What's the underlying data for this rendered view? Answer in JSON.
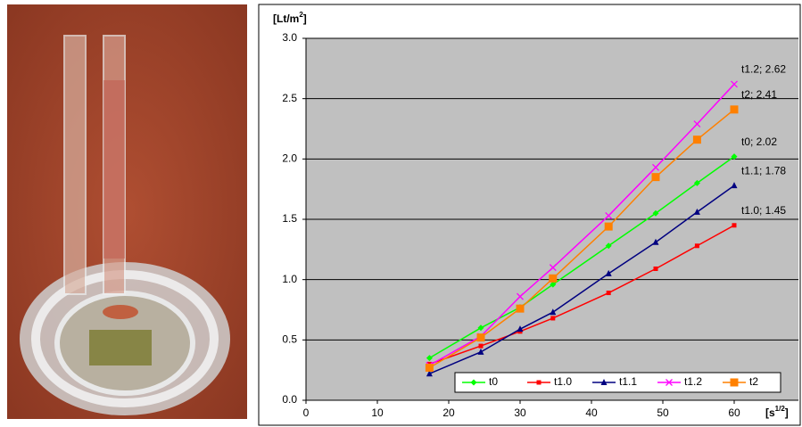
{
  "chart_data": {
    "type": "line",
    "y_label": [
      "[Lt/m",
      "2",
      "]"
    ],
    "x_label": [
      "[s",
      "1/2",
      "]"
    ],
    "x": [
      17.3,
      24.5,
      30,
      34.6,
      42.4,
      49,
      54.8,
      60
    ],
    "series": [
      {
        "name": "t0",
        "color": "#00ff00",
        "marker": "diamond",
        "values": [
          0.35,
          0.6,
          0.77,
          0.96,
          1.28,
          1.55,
          1.8,
          2.02
        ]
      },
      {
        "name": "t1.0",
        "color": "#ff0000",
        "marker": "square",
        "values": [
          0.3,
          0.45,
          0.57,
          0.68,
          0.89,
          1.09,
          1.28,
          1.45
        ]
      },
      {
        "name": "t1.1",
        "color": "#000080",
        "marker": "triangle",
        "values": [
          0.22,
          0.4,
          0.59,
          0.73,
          1.05,
          1.31,
          1.56,
          1.78
        ]
      },
      {
        "name": "t1.2",
        "color": "#ff00ff",
        "marker": "cross",
        "values": [
          0.29,
          0.53,
          0.86,
          1.1,
          1.53,
          1.93,
          2.29,
          2.62
        ]
      },
      {
        "name": "t2",
        "color": "#ff8000",
        "marker": "bigsquare",
        "values": [
          0.27,
          0.52,
          0.76,
          1.01,
          1.44,
          1.85,
          2.16,
          2.41
        ]
      }
    ],
    "annotations": [
      {
        "series": 3,
        "text": "t1.2; 2.62"
      },
      {
        "series": 4,
        "text": "t2; 2.41"
      },
      {
        "series": 0,
        "text": "t0; 2.02"
      },
      {
        "series": 2,
        "text": "t1.1; 1.78"
      },
      {
        "series": 1,
        "text": "t1.0; 1.45"
      }
    ],
    "xlim": [
      0,
      69
    ],
    "xticks": [
      0,
      10,
      20,
      30,
      40,
      50,
      60
    ],
    "ylim": [
      0,
      3
    ],
    "yticks": [
      {
        "value": 0,
        "label": "0.0"
      },
      0.5,
      {
        "value": 1,
        "label": "1.0"
      },
      1.5,
      {
        "value": 2,
        "label": "2.0"
      },
      2.5,
      {
        "value": 3,
        "label": "3.0"
      }
    ],
    "grid": true,
    "legend": "bottom",
    "plot_background": "#c0c0c0"
  }
}
